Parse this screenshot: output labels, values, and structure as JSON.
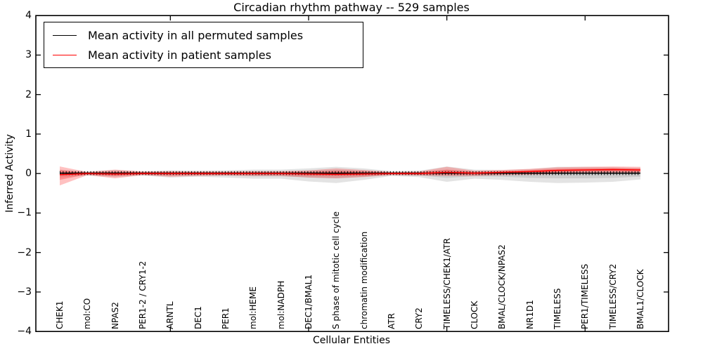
{
  "chart_data": {
    "type": "line",
    "title": "Circadian rhythm pathway -- 529 samples",
    "xlabel": "Cellular Entities",
    "ylabel": "Inferred Activity",
    "ylim": [
      -4,
      4
    ],
    "yticks": [
      4,
      3,
      2,
      1,
      0,
      -1,
      -2,
      -3,
      -4
    ],
    "ytick_labels": [
      "4",
      "3",
      "2",
      "1",
      "0",
      "−1",
      "−2",
      "−3",
      "−4"
    ],
    "x_major_tick_indices": [
      4,
      9,
      14,
      19
    ],
    "legend_position": "upper left",
    "grid": false,
    "entities": [
      "CHEK1",
      "mol:CO",
      "NPAS2",
      "PER1-2 / CRY1-2",
      "ARNTL",
      "DEC1",
      "PER1",
      "mol:HEME",
      "mol:NADPH",
      "DEC1/BMAL1",
      "S phase of mitotic cell cycle",
      "chromatin modification",
      "ATR",
      "CRY2",
      "TIMELESS/CHEK1/ATR",
      "CLOCK",
      "BMAL/CLOCK/NPAS2",
      "NR1D1",
      "TIMELESS",
      "PER1/TIMELESS",
      "TIMELESS/CRY2",
      "BMAL1/CLOCK"
    ],
    "series": [
      {
        "name": "Mean activity in all permuted samples",
        "color": "#000000",
        "values": [
          0.01,
          0.01,
          0.01,
          0.01,
          0.01,
          0.01,
          0.01,
          0.01,
          0.01,
          0.01,
          0.01,
          0.01,
          0.01,
          0.01,
          0.01,
          0.01,
          0.01,
          0.01,
          0.01,
          0.01,
          0.01,
          0.01
        ]
      },
      {
        "name": "Mean activity in patient samples",
        "color": "#ff0000",
        "values": [
          -0.03,
          0.0,
          -0.01,
          0.0,
          0.0,
          0.0,
          0.0,
          0.0,
          0.0,
          -0.01,
          -0.02,
          -0.01,
          0.0,
          0.0,
          0.03,
          0.01,
          0.03,
          0.05,
          0.08,
          0.09,
          0.1,
          0.09
        ]
      }
    ],
    "bands": [
      {
        "name": "permuted-range-outer",
        "color": "#999999",
        "opacity": 0.28,
        "lo": [
          -0.1,
          -0.05,
          -0.09,
          -0.05,
          -0.1,
          -0.08,
          -0.1,
          -0.13,
          -0.13,
          -0.2,
          -0.24,
          -0.16,
          -0.06,
          -0.09,
          -0.21,
          -0.13,
          -0.16,
          -0.21,
          -0.24,
          -0.23,
          -0.21,
          -0.15
        ],
        "hi": [
          0.1,
          0.05,
          0.09,
          0.05,
          0.08,
          0.07,
          0.08,
          0.1,
          0.1,
          0.13,
          0.17,
          0.13,
          0.06,
          0.07,
          0.18,
          0.1,
          0.09,
          0.11,
          0.17,
          0.17,
          0.16,
          0.14
        ]
      },
      {
        "name": "permuted-range-inner",
        "color": "#999999",
        "opacity": 0.3,
        "lo": [
          -0.05,
          -0.03,
          -0.05,
          -0.03,
          -0.05,
          -0.04,
          -0.05,
          -0.07,
          -0.07,
          -0.1,
          -0.12,
          -0.08,
          -0.03,
          -0.05,
          -0.11,
          -0.07,
          -0.08,
          -0.11,
          -0.12,
          -0.12,
          -0.11,
          -0.08
        ],
        "hi": [
          0.05,
          0.03,
          0.05,
          0.03,
          0.04,
          0.04,
          0.04,
          0.05,
          0.05,
          0.07,
          0.09,
          0.07,
          0.03,
          0.04,
          0.09,
          0.05,
          0.05,
          0.06,
          0.09,
          0.09,
          0.08,
          0.07
        ]
      },
      {
        "name": "patient-range-outer",
        "color": "#ff3333",
        "opacity": 0.3,
        "lo": [
          -0.3,
          -0.04,
          -0.12,
          -0.04,
          -0.08,
          -0.06,
          -0.05,
          -0.06,
          -0.06,
          -0.1,
          -0.12,
          -0.09,
          -0.04,
          -0.05,
          -0.06,
          -0.06,
          -0.04,
          -0.03,
          -0.01,
          0.01,
          0.02,
          0.01
        ],
        "hi": [
          0.18,
          0.04,
          0.1,
          0.05,
          0.06,
          0.05,
          0.05,
          0.06,
          0.06,
          0.08,
          0.13,
          0.09,
          0.04,
          0.05,
          0.17,
          0.07,
          0.09,
          0.12,
          0.16,
          0.17,
          0.18,
          0.17
        ]
      },
      {
        "name": "patient-range-inner",
        "color": "#ff3333",
        "opacity": 0.35,
        "lo": [
          -0.16,
          -0.02,
          -0.06,
          -0.02,
          -0.04,
          -0.03,
          -0.03,
          -0.03,
          -0.03,
          -0.05,
          -0.06,
          -0.05,
          -0.02,
          -0.03,
          -0.02,
          -0.03,
          -0.01,
          0.01,
          0.03,
          0.05,
          0.05,
          0.04
        ],
        "hi": [
          0.09,
          0.02,
          0.05,
          0.03,
          0.03,
          0.03,
          0.03,
          0.03,
          0.03,
          0.04,
          0.07,
          0.05,
          0.02,
          0.03,
          0.1,
          0.04,
          0.06,
          0.09,
          0.12,
          0.13,
          0.14,
          0.13
        ]
      }
    ]
  }
}
